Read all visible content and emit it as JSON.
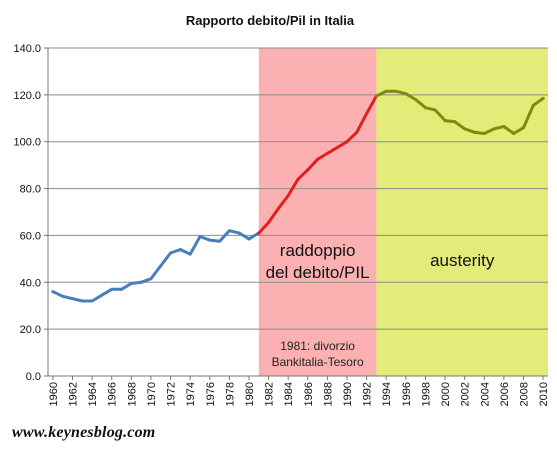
{
  "chart_data": {
    "type": "line",
    "title": "Rapporto debito/Pil in Italia",
    "xlabel": "",
    "ylabel": "",
    "xlim": [
      1959.5,
      2010.5
    ],
    "ylim": [
      0,
      140
    ],
    "yticks": [
      0,
      20,
      40,
      60,
      80,
      100,
      120,
      140
    ],
    "ytick_labels": [
      "0.0",
      "20.0",
      "40.0",
      "60.0",
      "80.0",
      "100.0",
      "120.0",
      "140.0"
    ],
    "xticks": [
      1960,
      1962,
      1964,
      1966,
      1968,
      1970,
      1972,
      1974,
      1976,
      1978,
      1980,
      1982,
      1984,
      1986,
      1988,
      1990,
      1992,
      1994,
      1996,
      1998,
      2000,
      2002,
      2004,
      2006,
      2008,
      2010
    ],
    "grid": "horizontal",
    "regions": [
      {
        "x_start": 1981,
        "x_end": 1993,
        "color": "#fbb1b1",
        "label_line1": "raddoppio",
        "label_line2": "del debito/PIL",
        "note_line1": "1981: divorzio",
        "note_line2": "Bankitalia-Tesoro"
      },
      {
        "x_start": 1993,
        "x_end": 2010.5,
        "color": "#e3eb79",
        "label_line1": "austerity",
        "label_line2": ""
      }
    ],
    "series": [
      {
        "color": "#4a7ebb",
        "x": [
          1960,
          1961,
          1962,
          1963,
          1964,
          1965,
          1966,
          1967,
          1968,
          1969,
          1970,
          1971,
          1972,
          1973,
          1974,
          1975,
          1976,
          1977,
          1978,
          1979,
          1980,
          1981
        ],
        "y": [
          36,
          34,
          33,
          32,
          32,
          34.5,
          37,
          37,
          39.5,
          40,
          41.5,
          47,
          52.5,
          54,
          52,
          59.5,
          58,
          57.5,
          62,
          61,
          58.5,
          61
        ]
      },
      {
        "color": "#e02020",
        "x": [
          1981,
          1982,
          1983,
          1984,
          1985,
          1986,
          1987,
          1988,
          1989,
          1990,
          1991,
          1992,
          1993
        ],
        "y": [
          61,
          65.5,
          71.5,
          77,
          84,
          88,
          92.5,
          95,
          97.5,
          100,
          104,
          112,
          119.5
        ]
      },
      {
        "color": "#7f8c0a",
        "x": [
          1993,
          1994,
          1995,
          1996,
          1997,
          1998,
          1999,
          2000,
          2001,
          2002,
          2003,
          2004,
          2005,
          2006,
          2007,
          2008,
          2009,
          2010
        ],
        "y": [
          119.5,
          121.5,
          121.5,
          120.5,
          118,
          114.5,
          113.5,
          109,
          108.5,
          105.5,
          104,
          103.5,
          105.5,
          106.5,
          103.5,
          106,
          115.5,
          118.5
        ]
      }
    ]
  },
  "footer": {
    "url": "www.keynesblog.com"
  }
}
